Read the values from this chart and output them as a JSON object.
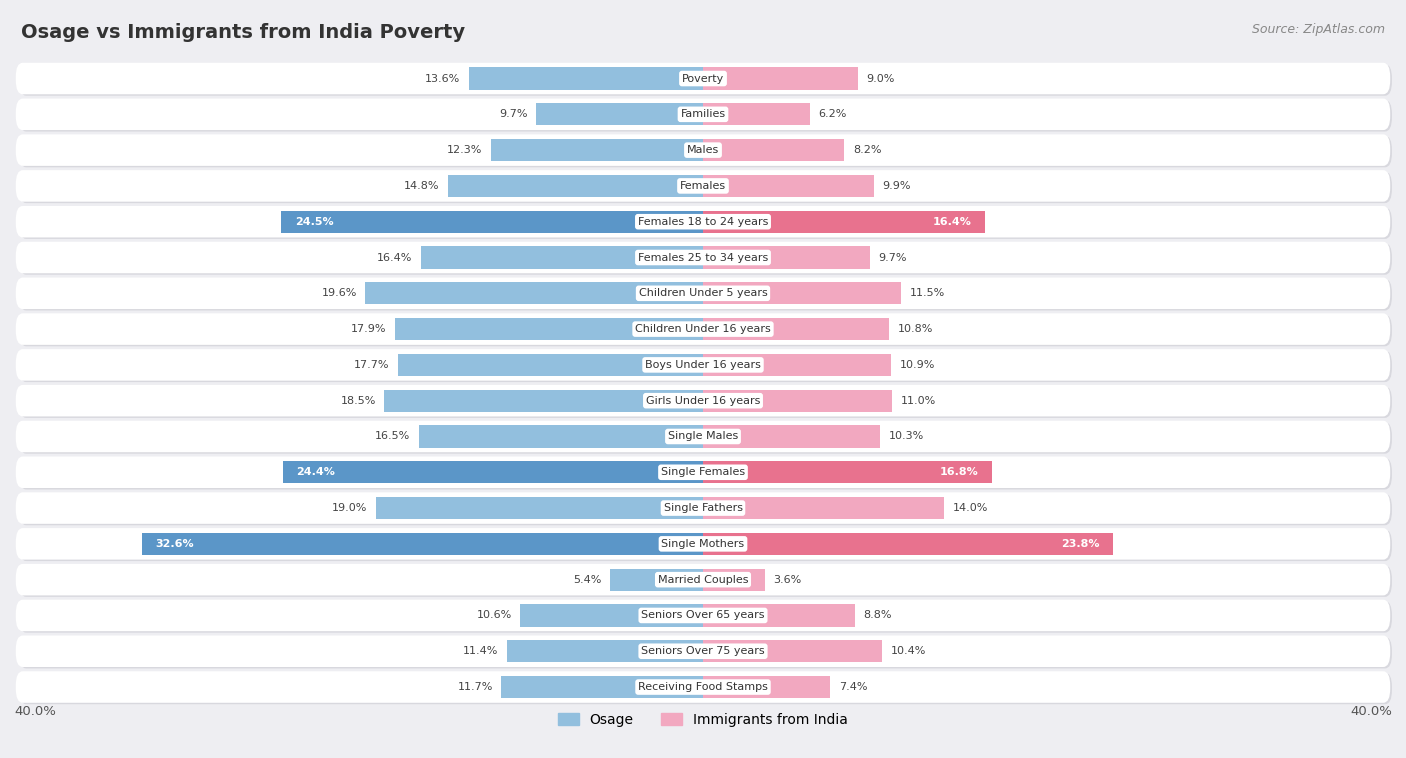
{
  "title": "Osage vs Immigrants from India Poverty",
  "source": "Source: ZipAtlas.com",
  "categories": [
    "Poverty",
    "Families",
    "Males",
    "Females",
    "Females 18 to 24 years",
    "Females 25 to 34 years",
    "Children Under 5 years",
    "Children Under 16 years",
    "Boys Under 16 years",
    "Girls Under 16 years",
    "Single Males",
    "Single Females",
    "Single Fathers",
    "Single Mothers",
    "Married Couples",
    "Seniors Over 65 years",
    "Seniors Over 75 years",
    "Receiving Food Stamps"
  ],
  "osage_values": [
    13.6,
    9.7,
    12.3,
    14.8,
    24.5,
    16.4,
    19.6,
    17.9,
    17.7,
    18.5,
    16.5,
    24.4,
    19.0,
    32.6,
    5.4,
    10.6,
    11.4,
    11.7
  ],
  "india_values": [
    9.0,
    6.2,
    8.2,
    9.9,
    16.4,
    9.7,
    11.5,
    10.8,
    10.9,
    11.0,
    10.3,
    16.8,
    14.0,
    23.8,
    3.6,
    8.8,
    10.4,
    7.4
  ],
  "osage_color": "#92bfde",
  "india_color": "#f2a8c0",
  "osage_highlight_color": "#5b96c8",
  "india_highlight_color": "#e8728e",
  "highlight_rows": [
    4,
    11,
    13
  ],
  "max_val": 40.0,
  "background_color": "#eeeef2",
  "row_bg_color": "#ffffff",
  "row_shadow_color": "#d8d8de",
  "legend_osage": "Osage",
  "legend_india": "Immigrants from India",
  "title_fontsize": 14,
  "label_fontsize": 8.5,
  "cat_fontsize": 8,
  "value_label_fontsize": 8
}
